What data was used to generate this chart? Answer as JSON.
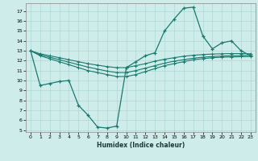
{
  "xlabel": "Humidex (Indice chaleur)",
  "ylabel": "",
  "bg_color": "#ceecea",
  "grid_color": "#aed8d4",
  "line_color": "#1a7a6e",
  "xlim": [
    -0.5,
    23.5
  ],
  "ylim": [
    4.8,
    17.8
  ],
  "yticks": [
    5,
    6,
    7,
    8,
    9,
    10,
    11,
    12,
    13,
    14,
    15,
    16,
    17
  ],
  "xticks": [
    0,
    1,
    2,
    3,
    4,
    5,
    6,
    7,
    8,
    9,
    10,
    11,
    12,
    13,
    14,
    15,
    16,
    17,
    18,
    19,
    20,
    21,
    22,
    23
  ],
  "curve1_x": [
    0,
    1,
    2,
    3,
    4,
    5,
    6,
    7,
    8,
    9,
    10,
    11,
    12,
    13,
    14,
    15,
    16,
    17,
    18,
    19,
    20,
    21,
    22,
    23
  ],
  "curve1_y": [
    13.0,
    9.5,
    9.7,
    9.9,
    10.0,
    7.5,
    6.5,
    5.3,
    5.2,
    5.4,
    11.3,
    11.9,
    12.5,
    12.8,
    15.0,
    16.2,
    17.3,
    17.4,
    14.5,
    13.2,
    13.8,
    14.0,
    13.0,
    12.5
  ],
  "curve2_x": [
    0,
    1,
    2,
    3,
    4,
    5,
    6,
    7,
    8,
    9,
    10,
    11,
    12,
    13,
    14,
    15,
    16,
    17,
    18,
    19,
    20,
    21,
    22,
    23
  ],
  "curve2_y": [
    13.0,
    12.5,
    12.2,
    11.9,
    11.6,
    11.3,
    11.0,
    10.8,
    10.6,
    10.4,
    10.4,
    10.6,
    10.9,
    11.2,
    11.5,
    11.7,
    11.9,
    12.1,
    12.2,
    12.3,
    12.35,
    12.38,
    12.4,
    12.42
  ],
  "curve3_x": [
    0,
    1,
    2,
    3,
    4,
    5,
    6,
    7,
    8,
    9,
    10,
    11,
    12,
    13,
    14,
    15,
    16,
    17,
    18,
    19,
    20,
    21,
    22,
    23
  ],
  "curve3_y": [
    13.0,
    12.6,
    12.35,
    12.1,
    11.85,
    11.6,
    11.35,
    11.15,
    10.95,
    10.8,
    10.8,
    11.0,
    11.25,
    11.5,
    11.75,
    11.95,
    12.1,
    12.25,
    12.35,
    12.42,
    12.47,
    12.5,
    12.52,
    12.54
  ],
  "curve4_x": [
    0,
    1,
    2,
    3,
    4,
    5,
    6,
    7,
    8,
    9,
    10,
    11,
    12,
    13,
    14,
    15,
    16,
    17,
    18,
    19,
    20,
    21,
    22,
    23
  ],
  "curve4_y": [
    13.0,
    12.7,
    12.5,
    12.3,
    12.1,
    11.9,
    11.7,
    11.55,
    11.4,
    11.3,
    11.3,
    11.5,
    11.7,
    11.95,
    12.15,
    12.3,
    12.45,
    12.55,
    12.62,
    12.67,
    12.7,
    12.72,
    12.72,
    12.7
  ]
}
